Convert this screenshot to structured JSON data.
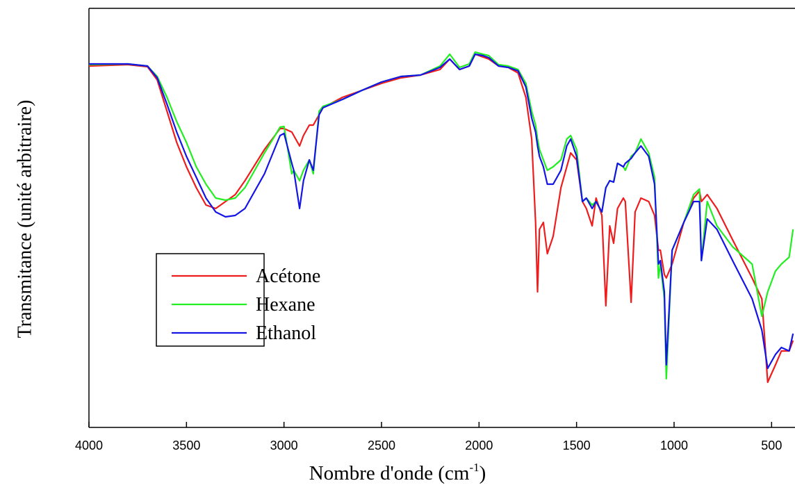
{
  "chart_data": {
    "type": "line",
    "x_label_parts": [
      "Nombre d'onde (cm",
      "-1",
      ")"
    ],
    "y_label": "Transmitance (unité arbitraire)",
    "xlim": [
      4000,
      380
    ],
    "ylim": [
      0,
      603
    ],
    "xticks": [
      4000,
      3500,
      3000,
      2500,
      2000,
      1500,
      1000,
      500
    ],
    "legend": "lower-left",
    "x": [
      4000,
      3800,
      3700,
      3650,
      3600,
      3550,
      3500,
      3450,
      3400,
      3350,
      3300,
      3250,
      3200,
      3100,
      3020,
      3000,
      2960,
      2950,
      2920,
      2900,
      2870,
      2850,
      2820,
      2800,
      2700,
      2600,
      2500,
      2400,
      2300,
      2200,
      2150,
      2100,
      2050,
      2020,
      1980,
      1950,
      1900,
      1850,
      1800,
      1760,
      1730,
      1710,
      1700,
      1690,
      1670,
      1650,
      1620,
      1580,
      1550,
      1530,
      1500,
      1470,
      1450,
      1420,
      1400,
      1370,
      1350,
      1330,
      1310,
      1290,
      1260,
      1250,
      1220,
      1200,
      1170,
      1130,
      1100,
      1080,
      1070,
      1050,
      1040,
      1010,
      950,
      900,
      870,
      860,
      830,
      780,
      700,
      600,
      550,
      520,
      480,
      450,
      410,
      390
    ],
    "series": [
      {
        "name": "Acétone",
        "color": "#ee1c1c",
        "values": [
          520,
          522,
          519,
          500,
          455,
          410,
          375,
          345,
          320,
          315,
          325,
          335,
          355,
          400,
          430,
          430,
          425,
          420,
          405,
          420,
          435,
          435,
          450,
          460,
          475,
          485,
          495,
          503,
          507,
          515,
          530,
          515,
          520,
          537,
          533,
          530,
          520,
          518,
          510,
          475,
          415,
          295,
          195,
          285,
          295,
          250,
          275,
          345,
          375,
          395,
          385,
          325,
          315,
          290,
          330,
          305,
          175,
          290,
          265,
          315,
          330,
          325,
          180,
          310,
          330,
          325,
          305,
          255,
          255,
          220,
          215,
          235,
          295,
          330,
          340,
          325,
          335,
          315,
          270,
          215,
          185,
          65,
          90,
          110,
          110,
          125
        ]
      },
      {
        "name": "Hexane",
        "color": "#22ee22",
        "values": [
          522,
          523,
          520,
          505,
          475,
          440,
          410,
          375,
          350,
          330,
          327,
          330,
          345,
          395,
          432,
          433,
          365,
          370,
          355,
          370,
          385,
          365,
          455,
          462,
          472,
          485,
          497,
          505,
          507,
          520,
          537,
          518,
          523,
          540,
          537,
          535,
          522,
          520,
          515,
          495,
          455,
          435,
          415,
          400,
          385,
          370,
          375,
          385,
          415,
          420,
          400,
          325,
          330,
          320,
          325,
          310,
          345,
          355,
          353,
          380,
          375,
          370,
          390,
          395,
          415,
          395,
          360,
          215,
          235,
          185,
          70,
          255,
          295,
          335,
          343,
          240,
          325,
          290,
          260,
          235,
          160,
          195,
          225,
          235,
          245,
          285
        ]
      },
      {
        "name": "Ethanol",
        "color": "#1414e6",
        "values": [
          523,
          523,
          520,
          503,
          465,
          425,
          390,
          360,
          330,
          310,
          303,
          305,
          315,
          365,
          420,
          423,
          380,
          370,
          315,
          355,
          385,
          370,
          450,
          460,
          472,
          485,
          497,
          505,
          507,
          518,
          530,
          515,
          520,
          537,
          535,
          532,
          520,
          518,
          513,
          490,
          445,
          425,
          405,
          390,
          375,
          350,
          350,
          370,
          405,
          415,
          390,
          325,
          330,
          315,
          325,
          310,
          345,
          355,
          353,
          380,
          375,
          380,
          387,
          395,
          405,
          390,
          350,
          235,
          240,
          195,
          90,
          255,
          295,
          325,
          325,
          240,
          300,
          285,
          240,
          185,
          140,
          85,
          105,
          115,
          110,
          135
        ]
      }
    ]
  }
}
